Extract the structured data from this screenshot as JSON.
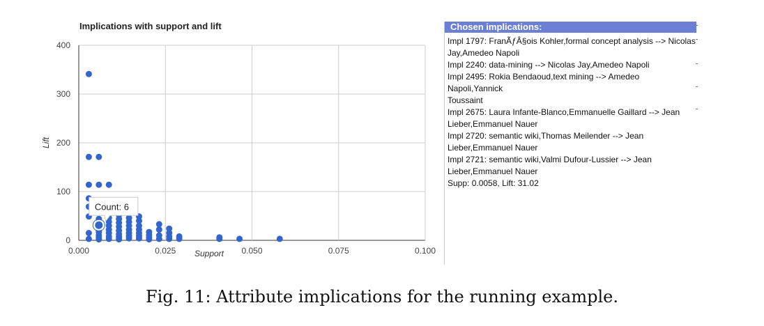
{
  "chart_data": {
    "type": "scatter",
    "title": "Implications with support and lift",
    "xlabel": "Support",
    "ylabel": "Lift",
    "xlim": [
      0,
      0.1
    ],
    "ylim": [
      0,
      400
    ],
    "xticks": [
      "0.000",
      "0.025",
      "0.050",
      "0.075",
      "0.100"
    ],
    "yticks": [
      "0",
      "100",
      "200",
      "300",
      "400"
    ],
    "grid": true,
    "point_color": "#3366cc",
    "series": [
      {
        "points": [
          [
            0.0029,
            341
          ],
          [
            0.0029,
            171
          ],
          [
            0.0029,
            114
          ],
          [
            0.0029,
            86
          ],
          [
            0.0029,
            69
          ],
          [
            0.0029,
            49
          ],
          [
            0.0029,
            15
          ],
          [
            0.0029,
            3
          ],
          [
            0.0058,
            171
          ],
          [
            0.0058,
            114
          ],
          [
            0.0058,
            57
          ],
          [
            0.0058,
            44
          ],
          [
            0.0058,
            37
          ],
          [
            0.0058,
            31
          ],
          [
            0.0058,
            24
          ],
          [
            0.0058,
            17
          ],
          [
            0.0058,
            10
          ],
          [
            0.0058,
            5
          ],
          [
            0.0058,
            2
          ],
          [
            0.0087,
            114
          ],
          [
            0.0087,
            57
          ],
          [
            0.0087,
            46
          ],
          [
            0.0087,
            38
          ],
          [
            0.0087,
            30
          ],
          [
            0.0087,
            22
          ],
          [
            0.0087,
            15
          ],
          [
            0.0087,
            8
          ],
          [
            0.0087,
            3
          ],
          [
            0.0116,
            52
          ],
          [
            0.0116,
            44
          ],
          [
            0.0116,
            36
          ],
          [
            0.0116,
            28
          ],
          [
            0.0116,
            20
          ],
          [
            0.0116,
            13
          ],
          [
            0.0116,
            7
          ],
          [
            0.0116,
            2
          ],
          [
            0.0145,
            46
          ],
          [
            0.0145,
            38
          ],
          [
            0.0145,
            30
          ],
          [
            0.0145,
            22
          ],
          [
            0.0145,
            15
          ],
          [
            0.0145,
            9
          ],
          [
            0.0145,
            4
          ],
          [
            0.0174,
            49
          ],
          [
            0.0174,
            40
          ],
          [
            0.0174,
            30
          ],
          [
            0.0174,
            22
          ],
          [
            0.0174,
            15
          ],
          [
            0.0174,
            9
          ],
          [
            0.0174,
            4
          ],
          [
            0.0203,
            17
          ],
          [
            0.0203,
            11
          ],
          [
            0.0203,
            6
          ],
          [
            0.0203,
            2
          ],
          [
            0.0232,
            33
          ],
          [
            0.0232,
            22
          ],
          [
            0.0232,
            10
          ],
          [
            0.0232,
            3
          ],
          [
            0.0261,
            24
          ],
          [
            0.0261,
            15
          ],
          [
            0.0261,
            8
          ],
          [
            0.0261,
            3
          ],
          [
            0.029,
            8
          ],
          [
            0.029,
            3
          ],
          [
            0.0406,
            6
          ],
          [
            0.0406,
            3
          ],
          [
            0.0464,
            3
          ],
          [
            0.058,
            3
          ]
        ]
      }
    ],
    "highlight": {
      "x": 0.0058,
      "y": 31.02
    },
    "tooltip": "Count: 6"
  },
  "panel": {
    "header": "Chosen implications:",
    "lines": [
      "Impl 1797: FranÃƒÂ§ois Kohler,formal concept analysis --> Nicolas",
      "Jay,Amedeo Napoli",
      "Impl 2240: data-mining --> Nicolas Jay,Amedeo Napoli",
      "Impl 2495: Rokia Bendaoud,text mining --> Amedeo Napoli,Yannick",
      "Toussaint",
      "Impl 2675: Laura Infante-Blanco,Emmanuelle Gaillard --> Jean",
      "Lieber,Emmanuel Nauer",
      "Impl 2720: semantic wiki,Thomas Meilender --> Jean",
      "Lieber,Emmanuel Nauer",
      "Impl 2721: semantic wiki,Valmi Dufour-Lussier --> Jean",
      "Lieber,Emmanuel Nauer",
      "Supp: 0.0058, Lift: 31.02"
    ],
    "header_color": "#6c7fd6"
  },
  "caption": "Fig. 11: Attribute implications for the running example."
}
